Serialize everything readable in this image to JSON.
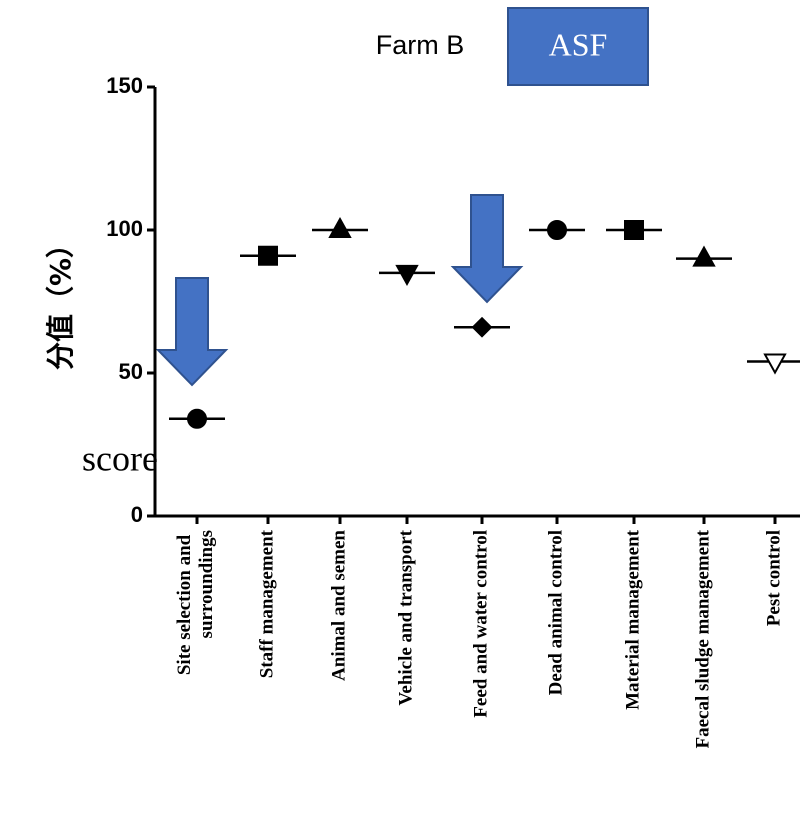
{
  "chart_data": {
    "type": "scatter",
    "title": "Farm B",
    "annotations": {
      "badge": "ASF",
      "score_label": "score"
    },
    "y_label": "分值（%）",
    "categories": [
      "Site selection and surroundings",
      "Staff management",
      "Animal and semen",
      "Vehicle and transport",
      "Feed and water control",
      "Dead animal control",
      "Material management",
      "Faecal sludge management",
      "Pest control"
    ],
    "values": [
      34,
      91,
      100,
      85,
      66,
      100,
      100,
      90,
      54
    ],
    "markers": [
      "circle",
      "square",
      "triangle-up",
      "triangle-down",
      "diamond",
      "circle",
      "square",
      "triangle-up",
      "triangle-down-open"
    ],
    "color": "#000000",
    "ylim": [
      0,
      150
    ],
    "yticks": [
      0,
      50,
      100,
      150
    ]
  }
}
